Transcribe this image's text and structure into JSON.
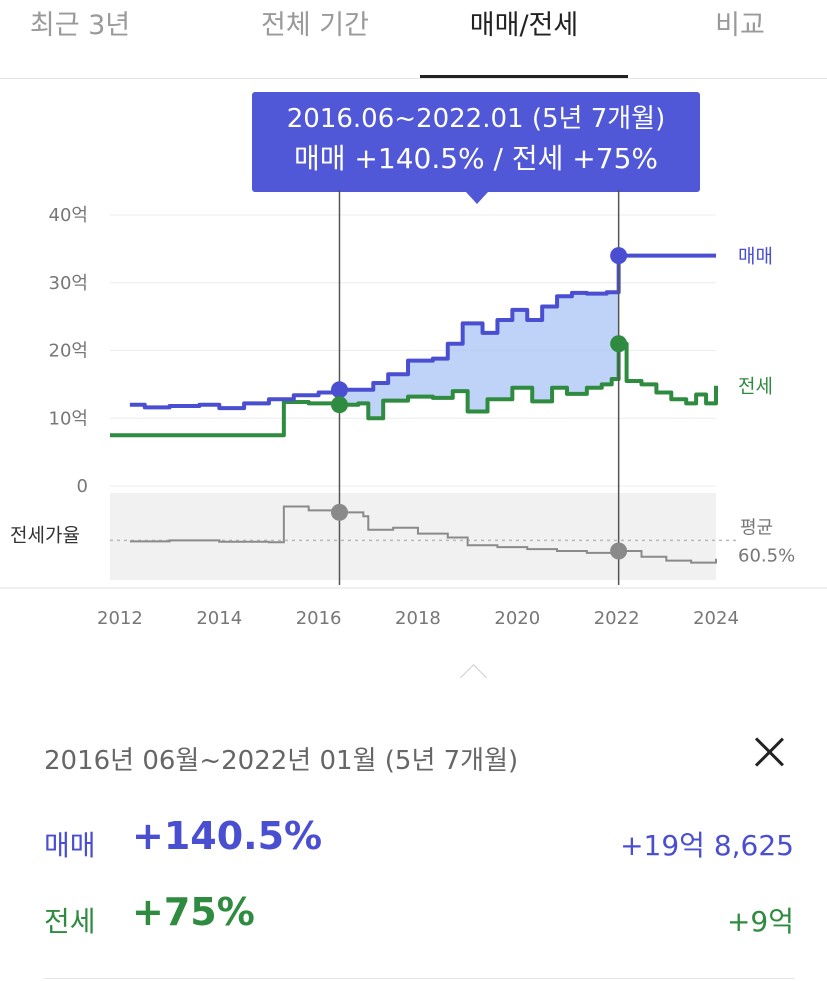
{
  "tabs": [
    {
      "label": "최근 3년",
      "active": false
    },
    {
      "label": "전체 기간",
      "active": false
    },
    {
      "label": "매매/전세",
      "active": true
    },
    {
      "label": "비교",
      "active": false
    }
  ],
  "tooltip": {
    "period": "2016.06~2022.01 (5년 7개월)",
    "summary": "매매 +140.5%  /  전세 +75%"
  },
  "colors": {
    "sale": "#4a4fd1",
    "jeonse": "#2e8b3f",
    "ratio": "#8a8a8a",
    "fill": "#a9c3f5",
    "tooltip_bg": "#5058d8"
  },
  "chart_data": {
    "type": "line",
    "x_ticks": [
      "2012",
      "2014",
      "2016",
      "2018",
      "2020",
      "2022",
      "2024"
    ],
    "y_ticks": [
      "40억",
      "30억",
      "20억",
      "10억",
      "0"
    ],
    "ylim": [
      0,
      40
    ],
    "xlim": [
      2011.8,
      2024
    ],
    "selection": {
      "start": 2016.42,
      "end": 2022.04
    },
    "series": [
      {
        "name": "매매",
        "points": [
          [
            2012.2,
            12
          ],
          [
            2012.5,
            11.6
          ],
          [
            2013,
            11.8
          ],
          [
            2013.6,
            12
          ],
          [
            2014,
            11.5
          ],
          [
            2014.5,
            12.2
          ],
          [
            2015,
            12.8
          ],
          [
            2015.5,
            13.4
          ],
          [
            2016,
            13.8
          ],
          [
            2016.42,
            14.2
          ],
          [
            2016.8,
            14.2
          ],
          [
            2017.1,
            15.2
          ],
          [
            2017.4,
            16.5
          ],
          [
            2017.8,
            18.5
          ],
          [
            2018.3,
            18.8
          ],
          [
            2018.6,
            21
          ],
          [
            2018.9,
            24
          ],
          [
            2019.3,
            22.6
          ],
          [
            2019.6,
            24.5
          ],
          [
            2019.9,
            26
          ],
          [
            2020.2,
            24.5
          ],
          [
            2020.5,
            26.5
          ],
          [
            2020.8,
            28
          ],
          [
            2021.1,
            28.5
          ],
          [
            2021.4,
            28.4
          ],
          [
            2021.8,
            28.6
          ],
          [
            2021.95,
            28.6
          ],
          [
            2022.04,
            34
          ],
          [
            2022.5,
            34
          ],
          [
            2023,
            34
          ],
          [
            2024,
            34
          ]
        ]
      },
      {
        "name": "전세",
        "points": [
          [
            2011.8,
            7.5
          ],
          [
            2012.5,
            7.5
          ],
          [
            2013.5,
            7.5
          ],
          [
            2014.5,
            7.5
          ],
          [
            2015.2,
            7.5
          ],
          [
            2015.3,
            12.4
          ],
          [
            2015.8,
            12.2
          ],
          [
            2016.42,
            12
          ],
          [
            2016.8,
            12.2
          ],
          [
            2017.0,
            10
          ],
          [
            2017.3,
            12.6
          ],
          [
            2017.8,
            13.2
          ],
          [
            2018.3,
            13
          ],
          [
            2018.7,
            14
          ],
          [
            2019.0,
            11
          ],
          [
            2019.4,
            12.8
          ],
          [
            2019.9,
            14.5
          ],
          [
            2020.3,
            12.5
          ],
          [
            2020.7,
            14.5
          ],
          [
            2021.0,
            13.6
          ],
          [
            2021.4,
            14.5
          ],
          [
            2021.7,
            15
          ],
          [
            2021.9,
            15.8
          ],
          [
            2022.04,
            21
          ],
          [
            2022.2,
            15.5
          ],
          [
            2022.5,
            15
          ],
          [
            2022.8,
            13.8
          ],
          [
            2023.1,
            12.8
          ],
          [
            2023.4,
            12.2
          ],
          [
            2023.6,
            13.5
          ],
          [
            2023.8,
            12.2
          ],
          [
            2024,
            14.8
          ]
        ]
      },
      {
        "name": "전세가율",
        "average_label": "평균",
        "average_value": "60.5%",
        "points": [
          [
            2012.2,
            60
          ],
          [
            2013,
            60.5
          ],
          [
            2014,
            59.8
          ],
          [
            2015,
            59.5
          ],
          [
            2015.25,
            59.5
          ],
          [
            2015.3,
            78
          ],
          [
            2015.8,
            76
          ],
          [
            2016.42,
            75
          ],
          [
            2016.9,
            73
          ],
          [
            2017.0,
            66
          ],
          [
            2017.5,
            67
          ],
          [
            2018,
            64
          ],
          [
            2018.6,
            62
          ],
          [
            2019,
            58
          ],
          [
            2019.6,
            57
          ],
          [
            2020.2,
            56
          ],
          [
            2020.8,
            55
          ],
          [
            2021.4,
            54
          ],
          [
            2021.95,
            56
          ],
          [
            2022.04,
            55
          ],
          [
            2022.5,
            52
          ],
          [
            2023,
            50
          ],
          [
            2023.5,
            49
          ],
          [
            2024,
            51
          ]
        ]
      }
    ]
  },
  "summary": {
    "period": "2016년 06월~2022년 01월 (5년 7개월)",
    "rows": [
      {
        "label": "매매",
        "percent": "+140.5%",
        "amount": "+19억 8,625"
      },
      {
        "label": "전세",
        "percent": "+75%",
        "amount": "+9억"
      }
    ]
  }
}
